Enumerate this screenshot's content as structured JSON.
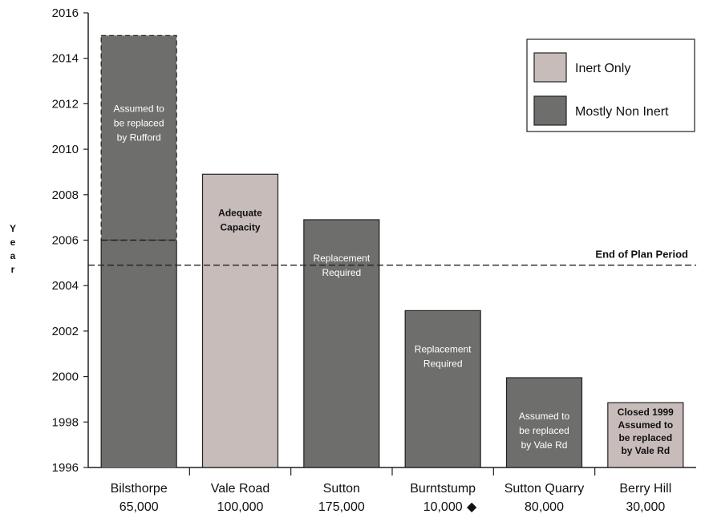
{
  "chart_data": {
    "type": "bar",
    "ylabel": "Year",
    "ylim": [
      1996,
      2016
    ],
    "yticks": [
      1996,
      1998,
      2000,
      2002,
      2004,
      2006,
      2008,
      2010,
      2012,
      2014,
      2016
    ],
    "categories": [
      {
        "name": "Bilsthorpe",
        "capacity": "65,000"
      },
      {
        "name": "Vale Road",
        "capacity": "100,000"
      },
      {
        "name": "Sutton",
        "capacity": "175,000"
      },
      {
        "name": "Burntstump",
        "capacity": "10,000",
        "marker": "◆"
      },
      {
        "name": "Sutton Quarry",
        "capacity": "80,000"
      },
      {
        "name": "Berry Hill",
        "capacity": "30,000"
      }
    ],
    "bars": [
      {
        "category": "Bilsthorpe",
        "value": 2006,
        "extended_value": 2015,
        "type": "Mostly Non Inert",
        "note": [
          "Assumed to",
          "be replaced",
          "by Rufford"
        ]
      },
      {
        "category": "Vale Road",
        "value": 2008.9,
        "type": "Inert Only",
        "note": [
          "Adequate",
          "Capacity"
        ]
      },
      {
        "category": "Sutton",
        "value": 2006.9,
        "type": "Mostly Non Inert",
        "note": [
          "Replacement",
          "Required"
        ]
      },
      {
        "category": "Burntstump",
        "value": 2002.9,
        "type": "Mostly Non Inert",
        "note": [
          "Replacement",
          "Required"
        ]
      },
      {
        "category": "Sutton Quarry",
        "value": 1999.95,
        "type": "Mostly Non Inert",
        "note": [
          "Assumed to",
          "be replaced",
          "by Vale Rd"
        ]
      },
      {
        "category": "Berry Hill",
        "value": 1998.85,
        "type": "Inert Only",
        "note": [
          "Closed 1999",
          "Assumed to",
          "be replaced",
          "by Vale Rd"
        ]
      }
    ],
    "reference_line": {
      "value": 2004.9,
      "label": "End of Plan Period"
    },
    "legend": {
      "placement": "top-right",
      "items": [
        {
          "label": "Inert Only",
          "color": "#c8bcbb"
        },
        {
          "label": "Mostly Non Inert",
          "color": "#6e6e6c"
        }
      ]
    }
  }
}
